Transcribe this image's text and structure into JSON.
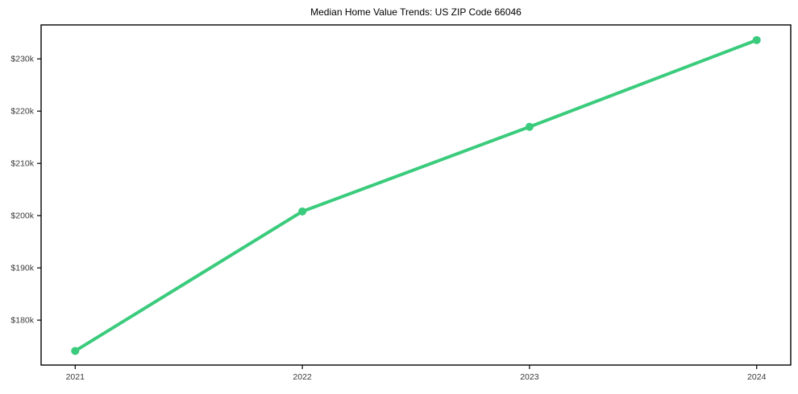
{
  "page": {
    "background_color": "#ffffff"
  },
  "chart_data": {
    "type": "line",
    "title": "Median Home Value Trends: US ZIP Code 66046",
    "series": [
      {
        "name": "median-home-value",
        "x": [
          2021,
          2022,
          2023,
          2024
        ],
        "values": [
          174100,
          200800,
          217000,
          233600
        ]
      }
    ],
    "xtick_labels": [
      "2021",
      "2022",
      "2023",
      "2024"
    ],
    "xticks": [
      2021,
      2022,
      2023,
      2024
    ],
    "ytick_labels": [
      "$180k",
      "$190k",
      "$200k",
      "$210k",
      "$220k",
      "$230k"
    ],
    "yticks": [
      180000,
      190000,
      200000,
      210000,
      220000,
      230000
    ],
    "xlim": [
      2020.85,
      2024.15
    ],
    "ylim": [
      171400,
      236500
    ],
    "grid": false,
    "legend_position": "none",
    "line_color": "#3acb7c",
    "marker_color": "#3acb7c",
    "frame_color": "#000000",
    "tick_label_color": "#3a3a3a",
    "title_color": "#000000"
  }
}
